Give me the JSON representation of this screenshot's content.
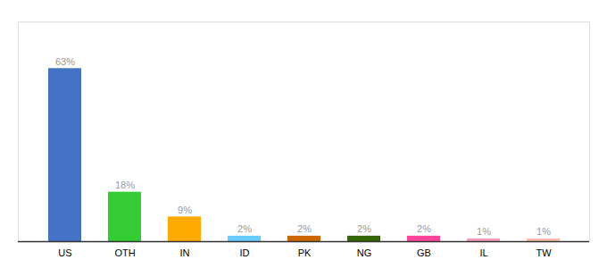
{
  "chart_data": {
    "type": "bar",
    "categories": [
      "US",
      "OTH",
      "IN",
      "ID",
      "PK",
      "NG",
      "GB",
      "IL",
      "TW"
    ],
    "values": [
      63,
      18,
      9,
      2,
      2,
      2,
      2,
      1,
      1
    ],
    "value_labels": [
      "63%",
      "18%",
      "9%",
      "2%",
      "2%",
      "2%",
      "2%",
      "1%",
      "1%"
    ],
    "colors": [
      "#4472c4",
      "#33cc33",
      "#ffaa00",
      "#66ccff",
      "#cc6600",
      "#336600",
      "#ff4499",
      "#ff99bb",
      "#ffbbaa"
    ],
    "ylim": [
      0,
      80
    ],
    "data_labels": true,
    "tick_labels": "x"
  }
}
